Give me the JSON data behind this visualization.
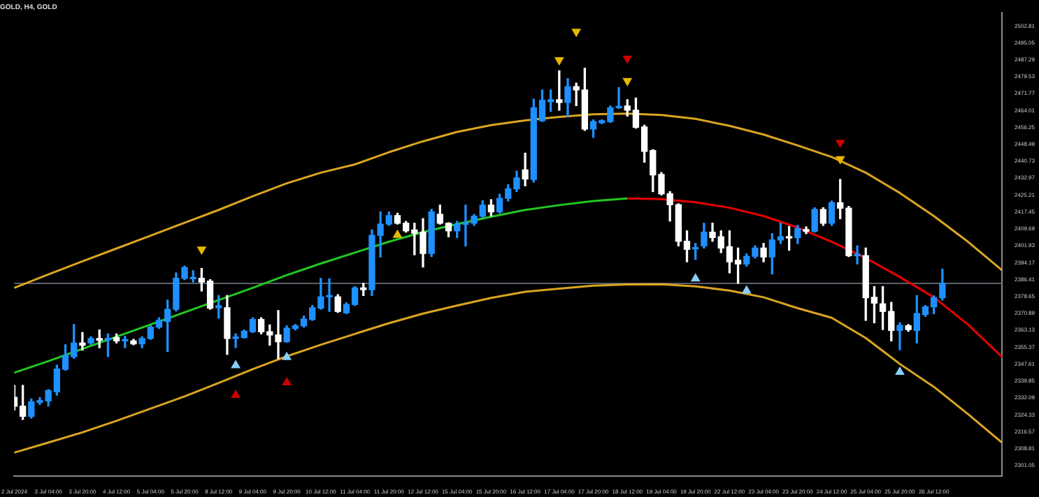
{
  "chart_data": {
    "type": "candlestick",
    "title": "GOLD, H4, GOLD",
    "categories": [
      "2 Jul 2024",
      null,
      null,
      null,
      "3 Jul 04:00",
      null,
      null,
      null,
      "3 Jul 20:00",
      null,
      null,
      null,
      "4 Jul 12:00",
      null,
      null,
      null,
      "5 Jul 04:00",
      null,
      null,
      null,
      "5 Jul 20:00",
      null,
      null,
      null,
      "8 Jul 12:00",
      null,
      null,
      null,
      "9 Jul 04:00",
      null,
      null,
      null,
      "9 Jul 20:00",
      null,
      null,
      null,
      "10 Jul 12:00",
      null,
      null,
      null,
      "11 Jul 04:00",
      null,
      null,
      null,
      "11 Jul 20:00",
      null,
      null,
      null,
      "12 Jul 12:00",
      null,
      null,
      null,
      "15 Jul 04:00",
      null,
      null,
      null,
      "15 Jul 20:00",
      null,
      null,
      null,
      "16 Jul 12:00",
      null,
      null,
      null,
      "17 Jul 04:00",
      null,
      null,
      null,
      "17 Jul 20:00",
      null,
      null,
      null,
      "18 Jul 12:00",
      null,
      null,
      null,
      "19 Jul 04:00",
      null,
      null,
      null,
      "19 Jul 20:00",
      null,
      null,
      null,
      "22 Jul 12:00",
      null,
      null,
      null,
      "23 Jul 04:00",
      null,
      null,
      null,
      "23 Jul 20:00",
      null,
      null,
      null,
      "24 Jul 12:00",
      null,
      null,
      null,
      "25 Jul 04:00",
      null,
      null,
      null,
      "25 Jul 20:00",
      null,
      null,
      null,
      "26 Jul 12:00",
      null,
      null,
      null,
      null,
      null,
      null,
      null,
      null
    ],
    "ohlc": [
      [
        2332.4,
        2337.8,
        2326.6,
        2328.3
      ],
      [
        2328.3,
        2337.8,
        2322.2,
        2323.7
      ],
      [
        2323.7,
        2331.6,
        2322.8,
        2330.3
      ],
      [
        2330.1,
        2332.2,
        2329.1,
        2330.9
      ],
      [
        2330.7,
        2335.9,
        2328.4,
        2335.5
      ],
      [
        2334.9,
        2347.1,
        2333.4,
        2345.4
      ],
      [
        2345.2,
        2356.5,
        2344.8,
        2351.5
      ],
      [
        2351.1,
        2365.8,
        2350.3,
        2357.3
      ],
      [
        2357.3,
        2362.1,
        2354.0,
        2356.3
      ],
      [
        2357.3,
        2360.2,
        2356.5,
        2359.4
      ],
      [
        2359.4,
        2363.3,
        2355.2,
        2358.5
      ],
      [
        2358.8,
        2361.5,
        2351.1,
        2359.4
      ],
      [
        2359.8,
        2361.5,
        2357.3,
        2358.3
      ],
      [
        2358.3,
        2360.4,
        2355.2,
        2358.8
      ],
      [
        2358.3,
        2359.0,
        2356.5,
        2356.9
      ],
      [
        2356.9,
        2360.2,
        2355.2,
        2359.4
      ],
      [
        2359.4,
        2365.2,
        2359.0,
        2364.6
      ],
      [
        2364.6,
        2368.9,
        2364.0,
        2367.7
      ],
      [
        2367.2,
        2377.0,
        2353.4,
        2372.8
      ],
      [
        2372.8,
        2389.5,
        2372.0,
        2387.0
      ],
      [
        2387.0,
        2392.6,
        2386.4,
        2392.0
      ],
      [
        2386.8,
        2390.5,
        2385.3,
        2387.4
      ],
      [
        2387.0,
        2391.5,
        2381.2,
        2385.3
      ],
      [
        2385.7,
        2386.4,
        2372.8,
        2373.3
      ],
      [
        2373.5,
        2379.1,
        2368.7,
        2374.4
      ],
      [
        2373.5,
        2379.1,
        2352.1,
        2359.4
      ],
      [
        2359.4,
        2361.5,
        2355.2,
        2359.8
      ],
      [
        2359.8,
        2363.3,
        2359.6,
        2362.7
      ],
      [
        2362.5,
        2368.9,
        2362.1,
        2368.1
      ],
      [
        2368.1,
        2368.9,
        2361.5,
        2362.5
      ],
      [
        2362.5,
        2365.6,
        2356.3,
        2361.0
      ],
      [
        2361.0,
        2372.2,
        2350.1,
        2357.9
      ],
      [
        2357.9,
        2365.2,
        2357.7,
        2364.1
      ],
      [
        2364.0,
        2365.8,
        2363.3,
        2365.2
      ],
      [
        2365.2,
        2369.7,
        2364.6,
        2368.3
      ],
      [
        2368.1,
        2374.5,
        2367.7,
        2373.5
      ],
      [
        2373.3,
        2387.0,
        2372.8,
        2378.5
      ],
      [
        2378.5,
        2386.8,
        2371.8,
        2378.9
      ],
      [
        2378.5,
        2379.5,
        2371.4,
        2371.8
      ],
      [
        2371.2,
        2375.8,
        2370.8,
        2375.0
      ],
      [
        2375.0,
        2383.2,
        2374.5,
        2382.6
      ],
      [
        2382.6,
        2384.7,
        2379.1,
        2381.8
      ],
      [
        2381.8,
        2409.2,
        2379.1,
        2406.7
      ],
      [
        2406.7,
        2417.5,
        2396.8,
        2411.9
      ],
      [
        2411.9,
        2417.5,
        2411.3,
        2415.8
      ],
      [
        2415.8,
        2416.9,
        2411.9,
        2412.3
      ],
      [
        2412.3,
        2413.1,
        2408.2,
        2408.8
      ],
      [
        2409.2,
        2412.3,
        2397.8,
        2407.7
      ],
      [
        2408.2,
        2414.4,
        2392.2,
        2398.4
      ],
      [
        2398.4,
        2418.7,
        2397.0,
        2417.5
      ],
      [
        2416.4,
        2420.6,
        2411.9,
        2412.3
      ],
      [
        2412.3,
        2412.5,
        2406.1,
        2408.8
      ],
      [
        2408.8,
        2413.1,
        2405.7,
        2411.8
      ],
      [
        2411.8,
        2420.6,
        2401.9,
        2412.3
      ],
      [
        2412.3,
        2416.3,
        2411.3,
        2415.5
      ],
      [
        2415.5,
        2422.6,
        2415.0,
        2420.6
      ],
      [
        2420.6,
        2423.1,
        2415.6,
        2417.5
      ],
      [
        2417.5,
        2425.6,
        2416.9,
        2423.7
      ],
      [
        2423.7,
        2430.0,
        2422.5,
        2428.1
      ],
      [
        2428.1,
        2436.2,
        2426.8,
        2433.1
      ],
      [
        2436.8,
        2444.5,
        2429.5,
        2432.6
      ],
      [
        2432.4,
        2469.2,
        2431.2,
        2465.3
      ],
      [
        2459.4,
        2473.5,
        2459.0,
        2468.7
      ],
      [
        2468.1,
        2473.5,
        2463.6,
        2469.0
      ],
      [
        2469.0,
        2482.3,
        2464.2,
        2467.7
      ],
      [
        2467.7,
        2478.7,
        2461.5,
        2475.0
      ],
      [
        2475.0,
        2476.6,
        2466.3,
        2473.5
      ],
      [
        2473.5,
        2483.5,
        2454.9,
        2455.5
      ],
      [
        2455.5,
        2459.8,
        2451.7,
        2459.0
      ],
      [
        2458.4,
        2459.8,
        2458.0,
        2459.4
      ],
      [
        2459.0,
        2466.1,
        2458.6,
        2465.3
      ],
      [
        2465.3,
        2474.6,
        2465.0,
        2465.9
      ],
      [
        2466.1,
        2469.0,
        2461.5,
        2464.2
      ],
      [
        2464.2,
        2469.8,
        2455.9,
        2456.3
      ],
      [
        2456.5,
        2457.3,
        2440.3,
        2445.3
      ],
      [
        2445.7,
        2446.1,
        2426.8,
        2434.5
      ],
      [
        2434.7,
        2435.6,
        2425.3,
        2425.8
      ],
      [
        2425.8,
        2426.8,
        2413.3,
        2420.8
      ],
      [
        2420.8,
        2421.2,
        2401.9,
        2404.0
      ],
      [
        2404.0,
        2408.8,
        2394.6,
        2400.3
      ],
      [
        2400.5,
        2403.0,
        2395.7,
        2400.9
      ],
      [
        2401.9,
        2412.3,
        2400.9,
        2408.2
      ],
      [
        2408.2,
        2412.3,
        2404.0,
        2405.7
      ],
      [
        2406.1,
        2408.8,
        2398.8,
        2400.9
      ],
      [
        2401.5,
        2408.8,
        2389.5,
        2394.6
      ],
      [
        2395.3,
        2400.9,
        2384.7,
        2393.6
      ],
      [
        2393.6,
        2398.2,
        2392.6,
        2397.1
      ],
      [
        2397.1,
        2401.9,
        2396.3,
        2400.9
      ],
      [
        2400.9,
        2403.0,
        2394.6,
        2396.8
      ],
      [
        2396.8,
        2407.5,
        2389.0,
        2404.6
      ],
      [
        2404.6,
        2412.3,
        2403.0,
        2406.1
      ],
      [
        2406.1,
        2410.8,
        2399.9,
        2405.5
      ],
      [
        2405.7,
        2411.3,
        2403.0,
        2409.8
      ],
      [
        2409.4,
        2410.6,
        2407.5,
        2408.6
      ],
      [
        2408.6,
        2419.4,
        2408.2,
        2418.6
      ],
      [
        2418.6,
        2419.4,
        2411.3,
        2412.3
      ],
      [
        2412.3,
        2422.5,
        2411.3,
        2421.7
      ],
      [
        2421.7,
        2432.4,
        2414.4,
        2419.2
      ],
      [
        2419.2,
        2420.0,
        2397.0,
        2397.4
      ],
      [
        2397.4,
        2401.9,
        2393.6,
        2397.8
      ],
      [
        2397.4,
        2400.9,
        2367.7,
        2378.1
      ],
      [
        2378.3,
        2383.2,
        2366.6,
        2375.6
      ],
      [
        2375.3,
        2383.2,
        2363.5,
        2371.8
      ],
      [
        2371.8,
        2376.0,
        2358.3,
        2363.1
      ],
      [
        2363.1,
        2366.6,
        2354.2,
        2365.4
      ],
      [
        2365.2,
        2365.8,
        2362.7,
        2363.5
      ],
      [
        2363.1,
        2379.1,
        2357.3,
        2370.8
      ],
      [
        2370.4,
        2374.5,
        2369.5,
        2373.9
      ],
      [
        2373.9,
        2378.9,
        2370.8,
        2378.1
      ],
      [
        2378.1,
        2391.2,
        2377.0,
        2384.7
      ],
      null,
      null,
      null,
      null,
      null,
      null,
      null
    ],
    "colors": [
      "#ffffff",
      "#ffffff",
      "#1e90ff",
      "#1e90ff",
      "#1e90ff",
      "#1e90ff",
      "#1e90ff",
      "#1e90ff",
      "#ffffff",
      "#1e90ff",
      "#ffffff",
      "#1e90ff",
      "#ffffff",
      "#1e90ff",
      "#ffffff",
      "#1e90ff",
      "#1e90ff",
      "#1e90ff",
      "#1e90ff",
      "#1e90ff",
      "#1e90ff",
      "#1e90ff",
      "#ffffff",
      "#ffffff",
      "#1e90ff",
      "#ffffff",
      "#1e90ff",
      "#1e90ff",
      "#1e90ff",
      "#ffffff",
      "#ffffff",
      "#ffffff",
      "#1e90ff",
      "#1e90ff",
      "#1e90ff",
      "#1e90ff",
      "#1e90ff",
      "#1e90ff",
      "#ffffff",
      "#1e90ff",
      "#1e90ff",
      "#ffffff",
      "#1e90ff",
      "#1e90ff",
      "#1e90ff",
      "#ffffff",
      "#ffffff",
      "#ffffff",
      "#ffffff",
      "#1e90ff",
      "#ffffff",
      "#ffffff",
      "#1e90ff",
      "#1e90ff",
      "#1e90ff",
      "#1e90ff",
      "#ffffff",
      "#1e90ff",
      "#1e90ff",
      "#1e90ff",
      "#ffffff",
      "#1e90ff",
      "#1e90ff",
      "#1e90ff",
      "#ffffff",
      "#1e90ff",
      "#ffffff",
      "#ffffff",
      "#1e90ff",
      "#1e90ff",
      "#1e90ff",
      "#1e90ff",
      "#ffffff",
      "#ffffff",
      "#ffffff",
      "#ffffff",
      "#ffffff",
      "#ffffff",
      "#ffffff",
      "#ffffff",
      "#1e90ff",
      "#1e90ff",
      "#ffffff",
      "#ffffff",
      "#ffffff",
      "#ffffff",
      "#1e90ff",
      "#1e90ff",
      "#ffffff",
      "#1e90ff",
      "#1e90ff",
      "#ffffff",
      "#1e90ff",
      "#ffffff",
      "#1e90ff",
      "#ffffff",
      "#1e90ff",
      "#ffffff",
      "#ffffff",
      "#1e90ff",
      "#ffffff",
      "#ffffff",
      "#ffffff",
      "#ffffff",
      "#1e90ff",
      "#ffffff",
      "#1e90ff",
      "#1e90ff",
      "#1e90ff",
      "#1e90ff",
      null,
      null,
      null,
      null,
      null,
      null,
      null
    ],
    "series": [
      {
        "type": "line",
        "color": "#daa520",
        "values": [
          2382.6,
          null,
          null,
          null,
          2388.8,
          null,
          null,
          null,
          2394.8,
          null,
          null,
          null,
          2400.7,
          null,
          null,
          null,
          2406.6,
          null,
          null,
          null,
          2412.5,
          null,
          null,
          null,
          2418.4,
          null,
          null,
          null,
          2424.7,
          null,
          null,
          null,
          2430.6,
          null,
          null,
          null,
          2435.5,
          null,
          null,
          null,
          2439.3,
          null,
          null,
          null,
          2444.9,
          null,
          null,
          null,
          2449.9,
          null,
          null,
          null,
          2454.2,
          null,
          null,
          null,
          2457.3,
          null,
          null,
          null,
          2459.5,
          null,
          null,
          null,
          2461.1,
          null,
          null,
          null,
          2462.3,
          null,
          null,
          null,
          2462.6,
          null,
          null,
          null,
          2462.0,
          null,
          null,
          null,
          2460.2,
          null,
          null,
          null,
          2457.0,
          null,
          null,
          null,
          2453.0,
          null,
          null,
          null,
          2448.0,
          null,
          null,
          null,
          2442.7,
          null,
          null,
          null,
          2435.5,
          null,
          null,
          null,
          2426.2,
          null,
          null,
          null,
          2415.6,
          null,
          null,
          null,
          2403.8,
          null,
          null,
          null,
          2390.7
        ]
      },
      {
        "type": "line",
        "color": "#22c722",
        "values": [
          2343.7,
          null,
          null,
          null,
          2349.0,
          null,
          null,
          null,
          2354.6,
          null,
          null,
          null,
          2360.2,
          null,
          null,
          null,
          2365.8,
          null,
          null,
          null,
          2371.4,
          null,
          null,
          null,
          2377.0,
          null,
          null,
          null,
          2382.6,
          null,
          null,
          null,
          2388.5,
          null,
          null,
          null,
          2393.8,
          null,
          null,
          null,
          2398.8,
          null,
          null,
          null,
          2403.8,
          null,
          null,
          null,
          2408.2,
          null,
          null,
          null,
          2411.9,
          null,
          null,
          null,
          2415.3,
          null,
          null,
          null,
          2418.4,
          null,
          null,
          null,
          2420.6,
          null,
          null,
          null,
          2422.5,
          null,
          null,
          null,
          2423.7,
          null,
          null,
          null,
          null,
          null,
          null,
          null,
          null,
          null,
          null,
          null,
          null,
          null,
          null,
          null,
          null,
          null,
          null,
          null,
          null,
          null,
          null,
          null,
          null,
          null,
          null,
          null,
          null,
          null,
          null,
          null,
          null,
          null,
          null,
          null,
          null,
          null,
          null,
          null,
          null,
          null,
          null,
          null,
          null
        ]
      },
      {
        "type": "line",
        "color": "#e60000",
        "values": [
          null,
          null,
          null,
          null,
          null,
          null,
          null,
          null,
          null,
          null,
          null,
          null,
          null,
          null,
          null,
          null,
          null,
          null,
          null,
          null,
          null,
          null,
          null,
          null,
          null,
          null,
          null,
          null,
          null,
          null,
          null,
          null,
          null,
          null,
          null,
          null,
          null,
          null,
          null,
          null,
          null,
          null,
          null,
          null,
          null,
          null,
          null,
          null,
          null,
          null,
          null,
          null,
          null,
          null,
          null,
          null,
          null,
          null,
          null,
          null,
          null,
          null,
          null,
          null,
          null,
          null,
          null,
          null,
          null,
          null,
          null,
          null,
          2423.7,
          null,
          null,
          null,
          2423.4,
          null,
          null,
          null,
          2421.9,
          null,
          null,
          null,
          2419.4,
          null,
          null,
          null,
          2415.6,
          null,
          null,
          null,
          2410.3,
          null,
          null,
          null,
          2403.8,
          null,
          null,
          null,
          2396.3,
          null,
          null,
          null,
          2387.6,
          null,
          null,
          null,
          2378.3,
          null,
          null,
          null,
          2365.8,
          null,
          null,
          null,
          2350.9
        ]
      },
      {
        "type": "line",
        "color": "#daa520",
        "values": [
          2307.0,
          null,
          null,
          null,
          2311.6,
          null,
          null,
          null,
          2316.3,
          null,
          null,
          null,
          2321.6,
          null,
          null,
          null,
          2327.2,
          null,
          null,
          null,
          2332.8,
          null,
          null,
          null,
          2339.0,
          null,
          null,
          null,
          2345.3,
          null,
          null,
          null,
          2351.2,
          null,
          null,
          null,
          2356.5,
          null,
          null,
          null,
          2361.5,
          null,
          null,
          null,
          2366.4,
          null,
          null,
          null,
          2370.8,
          null,
          null,
          null,
          2374.5,
          null,
          null,
          null,
          2378.0,
          null,
          null,
          null,
          2380.8,
          null,
          null,
          null,
          2382.3,
          null,
          null,
          null,
          2383.6,
          null,
          null,
          null,
          2384.2,
          null,
          null,
          null,
          2384.3,
          null,
          null,
          null,
          2383.3,
          null,
          null,
          null,
          2381.4,
          null,
          null,
          null,
          2378.3,
          null,
          null,
          null,
          2373.3,
          null,
          null,
          null,
          2368.9,
          null,
          null,
          null,
          2359.6,
          null,
          null,
          null,
          2347.7,
          null,
          null,
          null,
          2337.2,
          null,
          null,
          null,
          2324.7,
          null,
          null,
          null,
          2311.6
        ]
      },
      {
        "type": "scatter",
        "marker": "triangle",
        "color": "#e6b800",
        "values": [
          null,
          null,
          null,
          null,
          null,
          null,
          null,
          null,
          null,
          null,
          null,
          null,
          null,
          null,
          null,
          null,
          null,
          null,
          null,
          null,
          null,
          null,
          2400.3,
          null,
          null,
          null,
          null,
          null,
          null,
          null,
          null,
          null,
          null,
          null,
          null,
          null,
          null,
          null,
          null,
          null,
          null,
          null,
          null,
          null,
          null,
          2406.9,
          null,
          null,
          null,
          null,
          null,
          null,
          null,
          null,
          null,
          null,
          null,
          null,
          null,
          null,
          null,
          null,
          null,
          null,
          2487.2,
          null,
          2500.3,
          null,
          null,
          null,
          null,
          null,
          2477.7,
          null,
          null,
          null,
          null,
          null,
          null,
          null,
          null,
          null,
          null,
          null,
          null,
          null,
          null,
          null,
          null,
          null,
          null,
          null,
          null,
          null,
          null,
          null,
          null,
          2441.8,
          null,
          null,
          null,
          null,
          null,
          null,
          null,
          null,
          null,
          null,
          null,
          null,
          null,
          null,
          null,
          null,
          null,
          null,
          null
        ]
      },
      {
        "type": "scatter",
        "marker": "triangle",
        "color": "#cc0000",
        "values": [
          null,
          null,
          null,
          null,
          null,
          null,
          null,
          null,
          null,
          null,
          null,
          null,
          null,
          null,
          null,
          null,
          null,
          null,
          null,
          null,
          null,
          null,
          null,
          null,
          null,
          null,
          2333.4,
          null,
          null,
          null,
          null,
          null,
          2339.2,
          null,
          null,
          null,
          null,
          null,
          null,
          null,
          null,
          null,
          null,
          null,
          null,
          null,
          null,
          null,
          null,
          null,
          null,
          null,
          null,
          null,
          null,
          null,
          null,
          null,
          null,
          null,
          null,
          null,
          null,
          null,
          null,
          null,
          null,
          null,
          null,
          null,
          null,
          null,
          2487.9,
          null,
          null,
          null,
          null,
          null,
          null,
          null,
          null,
          null,
          null,
          null,
          null,
          null,
          null,
          null,
          null,
          null,
          null,
          null,
          null,
          null,
          null,
          null,
          null,
          2449.3,
          null,
          null,
          null,
          null,
          null,
          null,
          null,
          null,
          null,
          null,
          null,
          null,
          null,
          null,
          null,
          null,
          null,
          null,
          null
        ]
      },
      {
        "type": "scatter",
        "marker": "triangle",
        "color": "#87cefa",
        "values": [
          null,
          null,
          null,
          null,
          null,
          null,
          null,
          null,
          null,
          null,
          null,
          null,
          null,
          null,
          null,
          null,
          null,
          null,
          null,
          null,
          null,
          null,
          null,
          null,
          null,
          null,
          2347.0,
          null,
          null,
          null,
          null,
          null,
          2350.8,
          null,
          null,
          null,
          null,
          null,
          null,
          null,
          null,
          null,
          null,
          null,
          null,
          null,
          null,
          null,
          null,
          null,
          null,
          null,
          null,
          null,
          null,
          null,
          null,
          null,
          null,
          null,
          null,
          null,
          null,
          null,
          null,
          null,
          null,
          null,
          null,
          null,
          null,
          null,
          null,
          null,
          null,
          null,
          null,
          null,
          null,
          null,
          2386.8,
          null,
          null,
          null,
          null,
          null,
          2381.3,
          null,
          null,
          null,
          null,
          null,
          null,
          null,
          null,
          null,
          null,
          null,
          null,
          null,
          null,
          null,
          null,
          null,
          2344.0,
          null,
          null,
          null,
          null,
          null,
          null,
          null,
          null,
          null,
          null,
          null,
          null
        ]
      }
    ],
    "ylim": [
      2296.1,
      2509.0
    ],
    "yticks": [
      2301.05,
      2308.81,
      2316.57,
      2324.33,
      2332.09,
      2339.85,
      2347.61,
      2355.37,
      2363.13,
      2370.89,
      2378.65,
      2386.41,
      2394.17,
      2401.93,
      2409.69,
      2417.45,
      2425.21,
      2432.97,
      2440.73,
      2448.49,
      2456.25,
      2464.01,
      2471.77,
      2479.53,
      2487.29,
      2495.05,
      2502.81
    ],
    "ref_lines": [
      {
        "axis": "y",
        "value": 2384.7,
        "color": "#5a5f69"
      }
    ]
  }
}
